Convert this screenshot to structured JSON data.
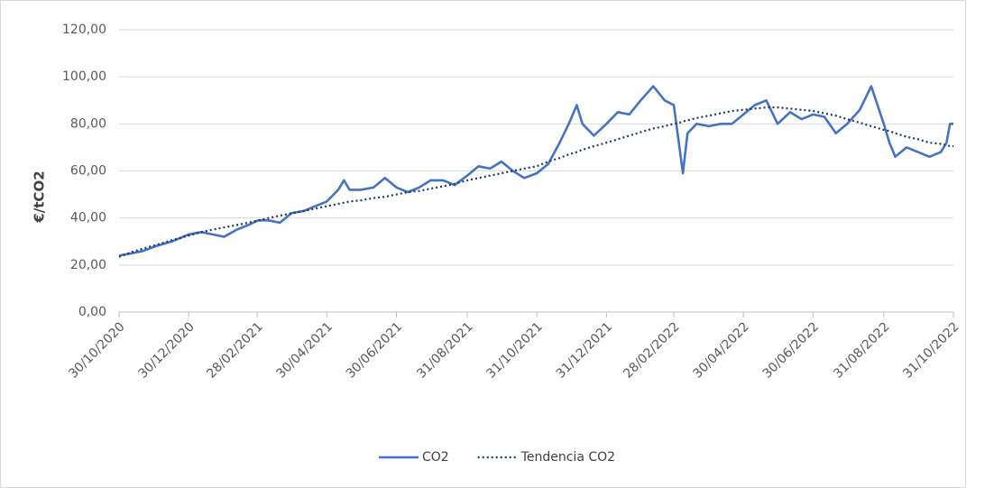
{
  "chart_data": {
    "type": "line",
    "y_label": "€/tCO2",
    "x": [
      "2020-10-30",
      "2020-11-10",
      "2020-11-20",
      "2020-12-01",
      "2020-12-15",
      "2020-12-30",
      "2021-01-10",
      "2021-01-20",
      "2021-01-30",
      "2021-02-10",
      "2021-02-20",
      "2021-03-01",
      "2021-03-10",
      "2021-03-20",
      "2021-03-30",
      "2021-04-10",
      "2021-04-20",
      "2021-04-30",
      "2021-05-10",
      "2021-05-15",
      "2021-05-20",
      "2021-05-30",
      "2021-06-10",
      "2021-06-20",
      "2021-06-30",
      "2021-07-10",
      "2021-07-20",
      "2021-07-30",
      "2021-08-10",
      "2021-08-20",
      "2021-08-31",
      "2021-09-10",
      "2021-09-20",
      "2021-09-30",
      "2021-10-10",
      "2021-10-20",
      "2021-10-31",
      "2021-11-10",
      "2021-11-20",
      "2021-11-28",
      "2021-12-05",
      "2021-12-10",
      "2021-12-20",
      "2021-12-31",
      "2022-01-10",
      "2022-01-20",
      "2022-01-30",
      "2022-02-10",
      "2022-02-20",
      "2022-02-28",
      "2022-03-05",
      "2022-03-08",
      "2022-03-12",
      "2022-03-20",
      "2022-03-31",
      "2022-04-10",
      "2022-04-20",
      "2022-04-30",
      "2022-05-10",
      "2022-05-20",
      "2022-05-30",
      "2022-06-10",
      "2022-06-20",
      "2022-06-30",
      "2022-07-10",
      "2022-07-20",
      "2022-07-30",
      "2022-08-10",
      "2022-08-20",
      "2022-08-31",
      "2022-09-05",
      "2022-09-10",
      "2022-09-20",
      "2022-09-30",
      "2022-10-10",
      "2022-10-20",
      "2022-10-25",
      "2022-10-28",
      "2022-10-31"
    ],
    "series": [
      {
        "name": "CO2",
        "color": "#4472c4",
        "style": "solid",
        "values": [
          24,
          25,
          26,
          28,
          30,
          33,
          34,
          33,
          32,
          35,
          37,
          39,
          39,
          38,
          42,
          43,
          45,
          47,
          52,
          56,
          52,
          52,
          53,
          57,
          53,
          51,
          53,
          56,
          56,
          54,
          58,
          62,
          61,
          64,
          60,
          57,
          59,
          63,
          72,
          80,
          88,
          80,
          75,
          80,
          85,
          84,
          90,
          96,
          90,
          88,
          70,
          59,
          76,
          80,
          79,
          80,
          80,
          84,
          88,
          90,
          80,
          85,
          82,
          84,
          83,
          76,
          80,
          86,
          96,
          80,
          72,
          66,
          70,
          68,
          66,
          68,
          72,
          80,
          80
        ]
      },
      {
        "name": "Tendencia CO2",
        "color": "#1f3864",
        "style": "dotted",
        "values": [
          23.5,
          25.5,
          27,
          28.5,
          30.5,
          32.5,
          34,
          35,
          36,
          37,
          38,
          39,
          40,
          41,
          42,
          43,
          44,
          45,
          46,
          46.5,
          47,
          47.5,
          48.5,
          49,
          50,
          51,
          51.5,
          52.5,
          53.5,
          54.5,
          56,
          57,
          58,
          59,
          60,
          61,
          62,
          64,
          65.5,
          67,
          68,
          69,
          70.5,
          72,
          73.5,
          75,
          76.5,
          78,
          79,
          80,
          80.5,
          81,
          81.5,
          82.5,
          83.5,
          84.5,
          85.5,
          86,
          86.5,
          87,
          87,
          86.5,
          86,
          85.5,
          84.5,
          83.5,
          82,
          80.5,
          79,
          77.5,
          77,
          76,
          74.5,
          73.5,
          72,
          71.5,
          71,
          70.5,
          70.5
        ]
      }
    ],
    "xlim": [
      "2020-10-30",
      "2022-10-31"
    ],
    "xticks": [
      {
        "value": "2020-10-30",
        "label": "30/10/2020"
      },
      {
        "value": "2020-12-30",
        "label": "30/12/2020"
      },
      {
        "value": "2021-02-28",
        "label": "28/02/2021"
      },
      {
        "value": "2021-04-30",
        "label": "30/04/2021"
      },
      {
        "value": "2021-06-30",
        "label": "30/06/2021"
      },
      {
        "value": "2021-08-31",
        "label": "31/08/2021"
      },
      {
        "value": "2021-10-31",
        "label": "31/10/2021"
      },
      {
        "value": "2021-12-31",
        "label": "31/12/2021"
      },
      {
        "value": "2022-02-28",
        "label": "28/02/2022"
      },
      {
        "value": "2022-04-30",
        "label": "30/04/2022"
      },
      {
        "value": "2022-06-30",
        "label": "30/06/2022"
      },
      {
        "value": "2022-08-31",
        "label": "31/08/2022"
      },
      {
        "value": "2022-10-31",
        "label": "31/10/2022"
      }
    ],
    "ylim": [
      0,
      120
    ],
    "yticks": [
      {
        "value": 0,
        "label": "0,00"
      },
      {
        "value": 20,
        "label": "20,00"
      },
      {
        "value": 40,
        "label": "40,00"
      },
      {
        "value": 60,
        "label": "60,00"
      },
      {
        "value": 80,
        "label": "80,00"
      },
      {
        "value": 100,
        "label": "100,00"
      },
      {
        "value": 120,
        "label": "120,00"
      }
    ],
    "grid": true,
    "legend": "bottom"
  }
}
